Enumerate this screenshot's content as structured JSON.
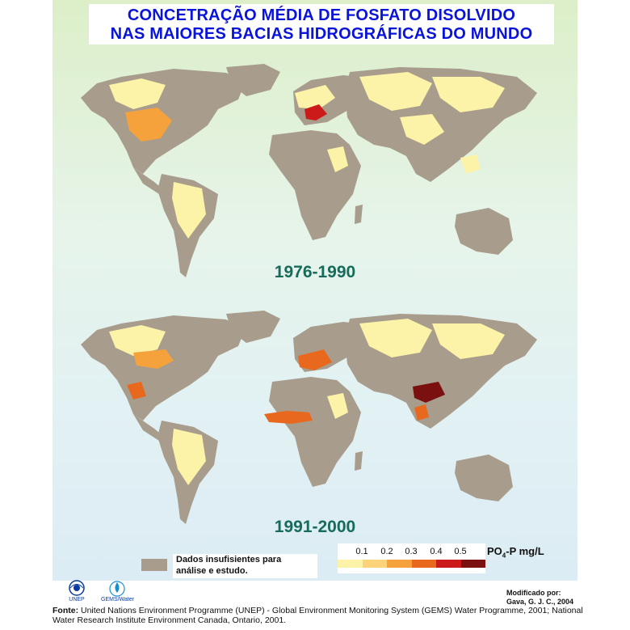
{
  "title": {
    "line1": "CONCETRAÇÃO MÉDIA DE  FOSFATO DISOLVIDO",
    "line2": "NAS MAIORES BACIAS HIDROGRÁFICAS DO MUNDO"
  },
  "maps": [
    {
      "period": "1976-1990"
    },
    {
      "period": "1991-2000"
    }
  ],
  "legend": {
    "nodata_line1": "Dados insufisientes para",
    "nodata_line2": "análise e  estudo.",
    "nodata_color": "#a89c8c",
    "ticks": [
      "0.1",
      "0.2",
      "0.3",
      "0.4",
      "0.5"
    ],
    "colors": [
      "#fdf3a8",
      "#fcd27a",
      "#f5a23c",
      "#e8681e",
      "#cc1a1a",
      "#7a1010"
    ],
    "unit_prefix": "PO",
    "unit_sub": "4",
    "unit_suffix": "-P mg/L"
  },
  "credit": {
    "line1": "Modificado por:",
    "line2": "Gava, G. J. C., 2004"
  },
  "logos": {
    "unep": "UNEP",
    "gems": "GEMS/Water"
  },
  "source": {
    "label": "Fonte:",
    "text": "United Nations Environment Programme (UNEP) -  Global Environment Monitoring System (GEMS) Water Programme, 2001; National Water Research Institute Environment Canada, Ontario, 2001."
  }
}
